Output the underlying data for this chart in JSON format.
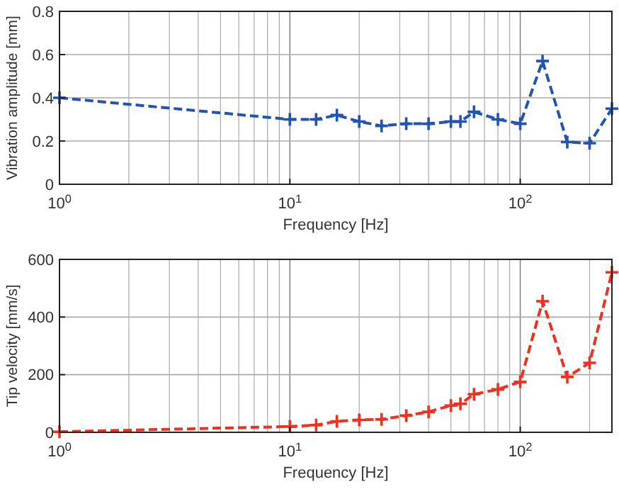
{
  "chart_data": [
    {
      "type": "line",
      "xlabel": "Frequency [Hz]",
      "ylabel": "Vibration amplitude [mm]",
      "log": "x",
      "grid": true,
      "marker": "cross",
      "line_style": "dashed",
      "xlim": [
        1,
        250
      ],
      "ylim": [
        0,
        0.8
      ],
      "xticks": [
        {
          "value": 1,
          "label": "10$^{0}$"
        },
        {
          "value": 10,
          "label": "10$^{1}$"
        },
        {
          "value": 100,
          "label": "10$^{2}$"
        }
      ],
      "yticks": [
        0,
        0.2,
        0.4,
        0.6,
        0.8
      ],
      "series": [
        {
          "color": "#2255b0",
          "x": [
            1,
            10,
            13,
            16,
            20,
            25,
            32,
            40,
            50,
            55,
            63,
            80,
            100,
            125,
            160,
            200,
            250
          ],
          "values": [
            0.4,
            0.3,
            0.3,
            0.32,
            0.29,
            0.27,
            0.28,
            0.28,
            0.29,
            0.29,
            0.335,
            0.3,
            0.28,
            0.57,
            0.195,
            0.19,
            0.35
          ]
        }
      ]
    },
    {
      "type": "line",
      "xlabel": "Frequency [Hz]",
      "ylabel": "Tip velocity [mm/s]",
      "log": "x",
      "grid": true,
      "marker": "cross",
      "line_style": "dashed",
      "xlim": [
        1,
        250
      ],
      "ylim": [
        0,
        600
      ],
      "xticks": [
        {
          "value": 1,
          "label": "10$^{0}$"
        },
        {
          "value": 10,
          "label": "10$^{1}$"
        },
        {
          "value": 100,
          "label": "10$^{2}$"
        }
      ],
      "yticks": [
        0,
        200,
        400,
        600
      ],
      "series": [
        {
          "color": "#f03020",
          "x": [
            1,
            10,
            13,
            16,
            20,
            25,
            32,
            40,
            50,
            55,
            63,
            80,
            100,
            125,
            160,
            200,
            250
          ],
          "values": [
            2,
            20,
            25,
            38,
            43,
            45,
            58,
            71,
            93,
            99,
            132,
            149,
            175,
            455,
            192,
            241,
            555
          ]
        }
      ]
    }
  ]
}
